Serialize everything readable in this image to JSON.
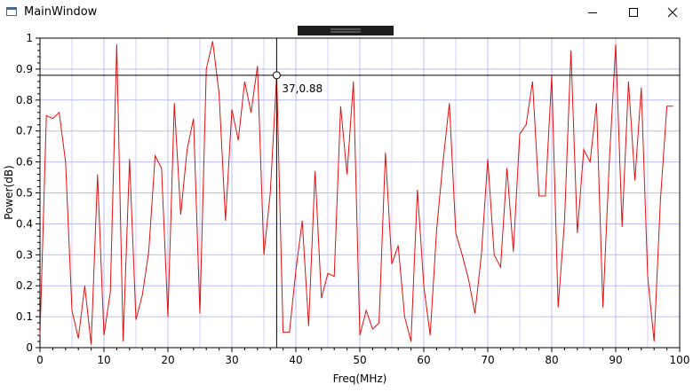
{
  "window": {
    "title": "MainWindow"
  },
  "chart_data": {
    "type": "line",
    "xlabel": "Freq(MHz)",
    "ylabel": "Power(dB)",
    "xlim": [
      0,
      100
    ],
    "ylim": [
      0,
      1
    ],
    "xticks": [
      "0",
      "10",
      "20",
      "30",
      "40",
      "50",
      "60",
      "70",
      "80",
      "90",
      "100"
    ],
    "yticks": [
      "0",
      "0.1",
      "0.2",
      "0.3",
      "0.4",
      "0.5",
      "0.6",
      "0.7",
      "0.8",
      "0.9",
      "1"
    ],
    "grid": true,
    "series": [
      {
        "color": "#e01010",
        "x": [
          0,
          1,
          2,
          3,
          4,
          5,
          6,
          7,
          8,
          9,
          10,
          11,
          12,
          13,
          14,
          15,
          16,
          17,
          18,
          19,
          20,
          21,
          22,
          23,
          24,
          25,
          26,
          27,
          28,
          29,
          30,
          31,
          32,
          33,
          34,
          35,
          36,
          37,
          38,
          39,
          40,
          41,
          42,
          43,
          44,
          45,
          46,
          47,
          48,
          49,
          50,
          51,
          52,
          53,
          54,
          55,
          56,
          57,
          58,
          59,
          60,
          61,
          62,
          63,
          64,
          65,
          66,
          67,
          68,
          69,
          70,
          71,
          72,
          73,
          74,
          75,
          76,
          77,
          78,
          79,
          80,
          81,
          82,
          83,
          84,
          85,
          86,
          87,
          88,
          89,
          90,
          91,
          92,
          93,
          94,
          95,
          96,
          97,
          98,
          99
        ],
        "y": [
          0.04,
          0.75,
          0.74,
          0.76,
          0.6,
          0.12,
          0.03,
          0.2,
          0.01,
          0.56,
          0.04,
          0.18,
          0.98,
          0.02,
          0.61,
          0.09,
          0.17,
          0.31,
          0.62,
          0.58,
          0.1,
          0.79,
          0.43,
          0.64,
          0.74,
          0.11,
          0.9,
          0.99,
          0.82,
          0.41,
          0.77,
          0.67,
          0.86,
          0.76,
          0.91,
          0.3,
          0.5,
          0.88,
          0.05,
          0.05,
          0.25,
          0.41,
          0.07,
          0.57,
          0.16,
          0.24,
          0.23,
          0.78,
          0.56,
          0.86,
          0.04,
          0.12,
          0.06,
          0.08,
          0.63,
          0.27,
          0.33,
          0.1,
          0.02,
          0.51,
          0.2,
          0.04,
          0.38,
          0.6,
          0.79,
          0.37,
          0.3,
          0.22,
          0.11,
          0.3,
          0.61,
          0.3,
          0.26,
          0.58,
          0.31,
          0.69,
          0.72,
          0.86,
          0.49,
          0.49,
          0.88,
          0.13,
          0.41,
          0.96,
          0.37,
          0.64,
          0.6,
          0.79,
          0.13,
          0.6,
          0.98,
          0.39,
          0.86,
          0.54,
          0.84,
          0.23,
          0.02,
          0.48,
          0.78,
          0.78
        ]
      }
    ],
    "cursor": {
      "x": 37,
      "y": 0.88,
      "label": "37,0.88"
    }
  },
  "colors": {
    "grid": "#bcbcf0",
    "line": "#e01010",
    "cursor": "#000000",
    "toolbar_handle": "#1e1e1e"
  }
}
